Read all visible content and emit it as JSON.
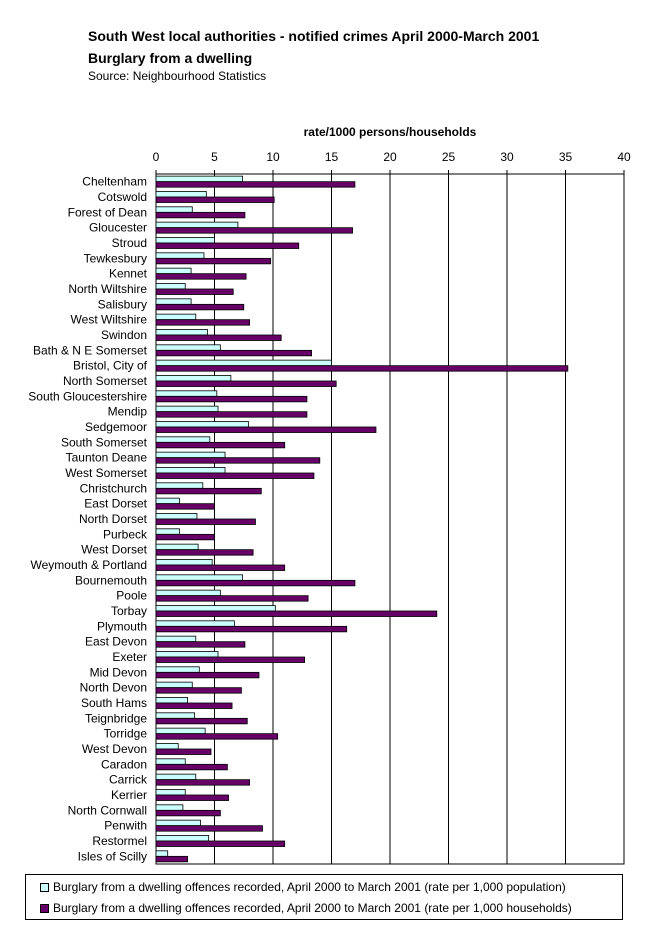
{
  "header": {
    "title": "South West local authorities - notified crimes April 2000-March 2001",
    "subtitle": "Burglary from a dwelling",
    "source": "Source: Neighbourhood Statistics"
  },
  "colors": {
    "population_fill": "#ccffff",
    "households_fill": "#660066",
    "bar_outline": "#000000"
  },
  "chart_data": {
    "type": "bar",
    "orientation": "horizontal",
    "xlabel": "rate/1000 persons/households",
    "xlim": [
      0,
      40
    ],
    "xticks": [
      0,
      5,
      10,
      15,
      20,
      25,
      30,
      35,
      40
    ],
    "grid": true,
    "legend_position": "bottom",
    "categories": [
      "Cheltenham",
      "Cotswold",
      "Forest of Dean",
      "Gloucester",
      "Stroud",
      "Tewkesbury",
      "Kennet",
      "North Wiltshire",
      "Salisbury",
      "West Wiltshire",
      "Swindon",
      "Bath & N E Somerset",
      "Bristol, City of",
      "North Somerset",
      "South Gloucestershire",
      "Mendip",
      "Sedgemoor",
      "South Somerset",
      "Taunton Deane",
      "West Somerset",
      "Christchurch",
      "East Dorset",
      "North Dorset",
      "Purbeck",
      "West Dorset",
      "Weymouth & Portland",
      "Bournemouth",
      "Poole",
      "Torbay",
      "Plymouth",
      "East Devon",
      "Exeter",
      "Mid Devon",
      "North Devon",
      "South Hams",
      "Teignbridge",
      "Torridge",
      "West Devon",
      "Caradon",
      "Carrick",
      "Kerrier",
      "North Cornwall",
      "Penwith",
      "Restormel",
      "Isles of Scilly"
    ],
    "series": [
      {
        "name": "Burglary from a dwelling offences recorded, April 2000 to March 2001 (rate per 1,000 population)",
        "values": [
          7.4,
          4.3,
          3.1,
          7.0,
          5.0,
          4.1,
          3.0,
          2.5,
          3.0,
          3.4,
          4.4,
          5.5,
          15.0,
          6.4,
          5.2,
          5.3,
          7.9,
          4.6,
          5.9,
          5.9,
          4.0,
          2.0,
          3.5,
          2.0,
          3.6,
          4.8,
          7.4,
          5.5,
          10.2,
          6.7,
          3.4,
          5.3,
          3.7,
          3.1,
          2.7,
          3.3,
          4.2,
          1.9,
          2.5,
          3.4,
          2.5,
          2.3,
          3.8,
          4.5,
          1.0
        ]
      },
      {
        "name": "Burglary from a dwelling offences recorded, April 2000 to March 2001 (rate per 1,000 households)",
        "values": [
          17.0,
          10.1,
          7.6,
          16.8,
          12.2,
          9.8,
          7.7,
          6.6,
          7.5,
          8.0,
          10.7,
          13.3,
          35.2,
          15.4,
          12.9,
          12.9,
          18.8,
          11.0,
          14.0,
          13.5,
          9.0,
          5.0,
          8.5,
          5.0,
          8.3,
          11.0,
          17.0,
          13.0,
          24.0,
          16.3,
          7.6,
          12.7,
          8.8,
          7.3,
          6.5,
          7.8,
          10.4,
          4.7,
          6.1,
          8.0,
          6.2,
          5.5,
          9.1,
          11.0,
          2.7
        ]
      }
    ]
  }
}
